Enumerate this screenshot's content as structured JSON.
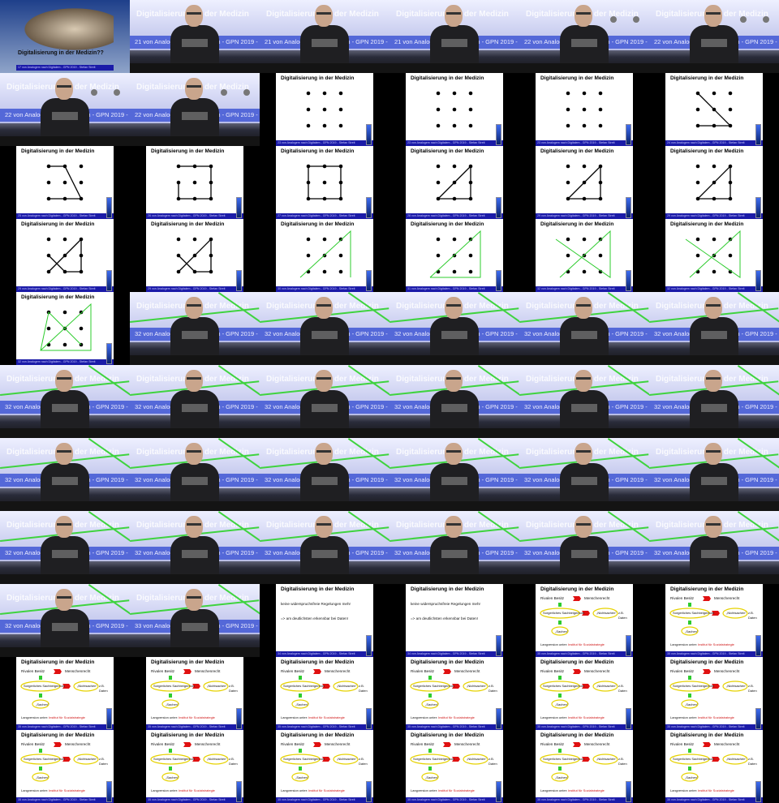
{
  "sheet": {
    "slide_title": "Digitalisierung in der Medizin",
    "title_slide_text": "Digitalisierung in der Medizin??",
    "projected_title": "Digitalisierung in der Medizin",
    "footer_short": "von Analogem nach Digitalem - GPN 2019 - Stefan Streit",
    "projected_footer": "von Analogen nach Digitalen - GPN 2019 - Stefan"
  },
  "slide_text": {
    "line1": "keine widerspruchsfreie Regelungen mehr",
    "line2": "=> am deutlichsten erkennbar bei Daten!",
    "rivalen": "Rivalen Besitz",
    "menschenrecht": "Menschenrecht",
    "sorglich": "Sorgerliches Sachbeigentum",
    "nichtsachen": "„Nichtsachen\"",
    "zb": "z.B.",
    "daten": "Daten",
    "sachen": "„Sachen\"",
    "langversion": "Langversion unter:",
    "institut": "Institut für Sozialstrategie"
  },
  "frames": [
    {
      "kind": "title",
      "num": "17"
    },
    {
      "kind": "video",
      "num": "21",
      "dots": 0,
      "green": 0
    },
    {
      "kind": "video",
      "num": "21",
      "dots": 0,
      "green": 0
    },
    {
      "kind": "video",
      "num": "21",
      "dots": 0,
      "green": 0
    },
    {
      "kind": "video",
      "num": "22",
      "dots": 2,
      "green": 0
    },
    {
      "kind": "video",
      "num": "22",
      "dots": 2,
      "green": 0
    },
    {
      "kind": "video",
      "num": "22",
      "dots": 2,
      "green": 0
    },
    {
      "kind": "video",
      "num": "22",
      "dots": 2,
      "green": 0
    },
    {
      "kind": "slide",
      "num": "23",
      "layout": "dots"
    },
    {
      "kind": "slide",
      "num": "23",
      "layout": "dots"
    },
    {
      "kind": "slide",
      "num": "23",
      "layout": "dots"
    },
    {
      "kind": "slide",
      "num": "24",
      "layout": "dots-a"
    },
    {
      "kind": "slide",
      "num": "25",
      "layout": "dots-b"
    },
    {
      "kind": "slide",
      "num": "26",
      "layout": "dots-c"
    },
    {
      "kind": "slide",
      "num": "27",
      "layout": "dots-square"
    },
    {
      "kind": "slide",
      "num": "28",
      "layout": "dots-d"
    },
    {
      "kind": "slide",
      "num": "29",
      "layout": "dots-d"
    },
    {
      "kind": "slide",
      "num": "29",
      "layout": "dots-d"
    },
    {
      "kind": "slide",
      "num": "29",
      "layout": "dots-e"
    },
    {
      "kind": "slide",
      "num": "29",
      "layout": "dots-e"
    },
    {
      "kind": "slide",
      "num": "30",
      "layout": "tri1"
    },
    {
      "kind": "slide",
      "num": "31",
      "layout": "tri2"
    },
    {
      "kind": "slide",
      "num": "32",
      "layout": "tri3"
    },
    {
      "kind": "slide",
      "num": "32",
      "layout": "tri3"
    },
    {
      "kind": "slide",
      "num": "32",
      "layout": "tri4"
    },
    {
      "kind": "video",
      "num": "32",
      "dots": 0,
      "green": 1
    },
    {
      "kind": "video",
      "num": "32",
      "dots": 0,
      "green": 1
    },
    {
      "kind": "video",
      "num": "32",
      "dots": 0,
      "green": 1
    },
    {
      "kind": "video",
      "num": "32",
      "dots": 0,
      "green": 1
    },
    {
      "kind": "video",
      "num": "32",
      "dots": 0,
      "green": 1
    },
    {
      "kind": "video",
      "num": "32",
      "dots": 0,
      "green": 1
    },
    {
      "kind": "video",
      "num": "32",
      "dots": 0,
      "green": 1
    },
    {
      "kind": "video",
      "num": "32",
      "dots": 0,
      "green": 1
    },
    {
      "kind": "video",
      "num": "32",
      "dots": 0,
      "green": 1
    },
    {
      "kind": "video",
      "num": "32",
      "dots": 0,
      "green": 1
    },
    {
      "kind": "video",
      "num": "32",
      "dots": 0,
      "green": 1
    },
    {
      "kind": "video",
      "num": "32",
      "dots": 0,
      "green": 1
    },
    {
      "kind": "video",
      "num": "32",
      "dots": 0,
      "green": 1
    },
    {
      "kind": "video",
      "num": "32",
      "dots": 0,
      "green": 1
    },
    {
      "kind": "video",
      "num": "32",
      "dots": 0,
      "green": 1
    },
    {
      "kind": "video",
      "num": "32",
      "dots": 0,
      "green": 1
    },
    {
      "kind": "video",
      "num": "32",
      "dots": 0,
      "green": 1
    },
    {
      "kind": "video",
      "num": "32",
      "dots": 0,
      "green": 1
    },
    {
      "kind": "video",
      "num": "32",
      "dots": 0,
      "green": 1
    },
    {
      "kind": "video",
      "num": "32",
      "dots": 0,
      "green": 1
    },
    {
      "kind": "video",
      "num": "32",
      "dots": 0,
      "green": 1
    },
    {
      "kind": "video",
      "num": "32",
      "dots": 0,
      "green": 1
    },
    {
      "kind": "video",
      "num": "32",
      "dots": 0,
      "green": 1
    },
    {
      "kind": "video",
      "num": "32",
      "dots": 0,
      "green": 1
    },
    {
      "kind": "video",
      "num": "33",
      "dots": 0,
      "green": 1
    },
    {
      "kind": "slide",
      "num": "34",
      "layout": "text"
    },
    {
      "kind": "slide",
      "num": "34",
      "layout": "text"
    },
    {
      "kind": "slide",
      "num": "35",
      "layout": "diagram"
    },
    {
      "kind": "slide",
      "num": "35",
      "layout": "diagram"
    },
    {
      "kind": "slide",
      "num": "35",
      "layout": "diagram"
    },
    {
      "kind": "slide",
      "num": "35",
      "layout": "diagram"
    },
    {
      "kind": "slide",
      "num": "35",
      "layout": "diagram"
    },
    {
      "kind": "slide",
      "num": "35",
      "layout": "diagram"
    },
    {
      "kind": "slide",
      "num": "35",
      "layout": "diagram"
    },
    {
      "kind": "slide",
      "num": "35",
      "layout": "diagram"
    },
    {
      "kind": "slide",
      "num": "35",
      "layout": "diagram"
    },
    {
      "kind": "slide",
      "num": "35",
      "layout": "diagram"
    },
    {
      "kind": "slide",
      "num": "35",
      "layout": "diagram"
    },
    {
      "kind": "slide",
      "num": "35",
      "layout": "diagram"
    },
    {
      "kind": "slide",
      "num": "35",
      "layout": "diagram"
    },
    {
      "kind": "slide",
      "num": "35",
      "layout": "diagram"
    }
  ]
}
